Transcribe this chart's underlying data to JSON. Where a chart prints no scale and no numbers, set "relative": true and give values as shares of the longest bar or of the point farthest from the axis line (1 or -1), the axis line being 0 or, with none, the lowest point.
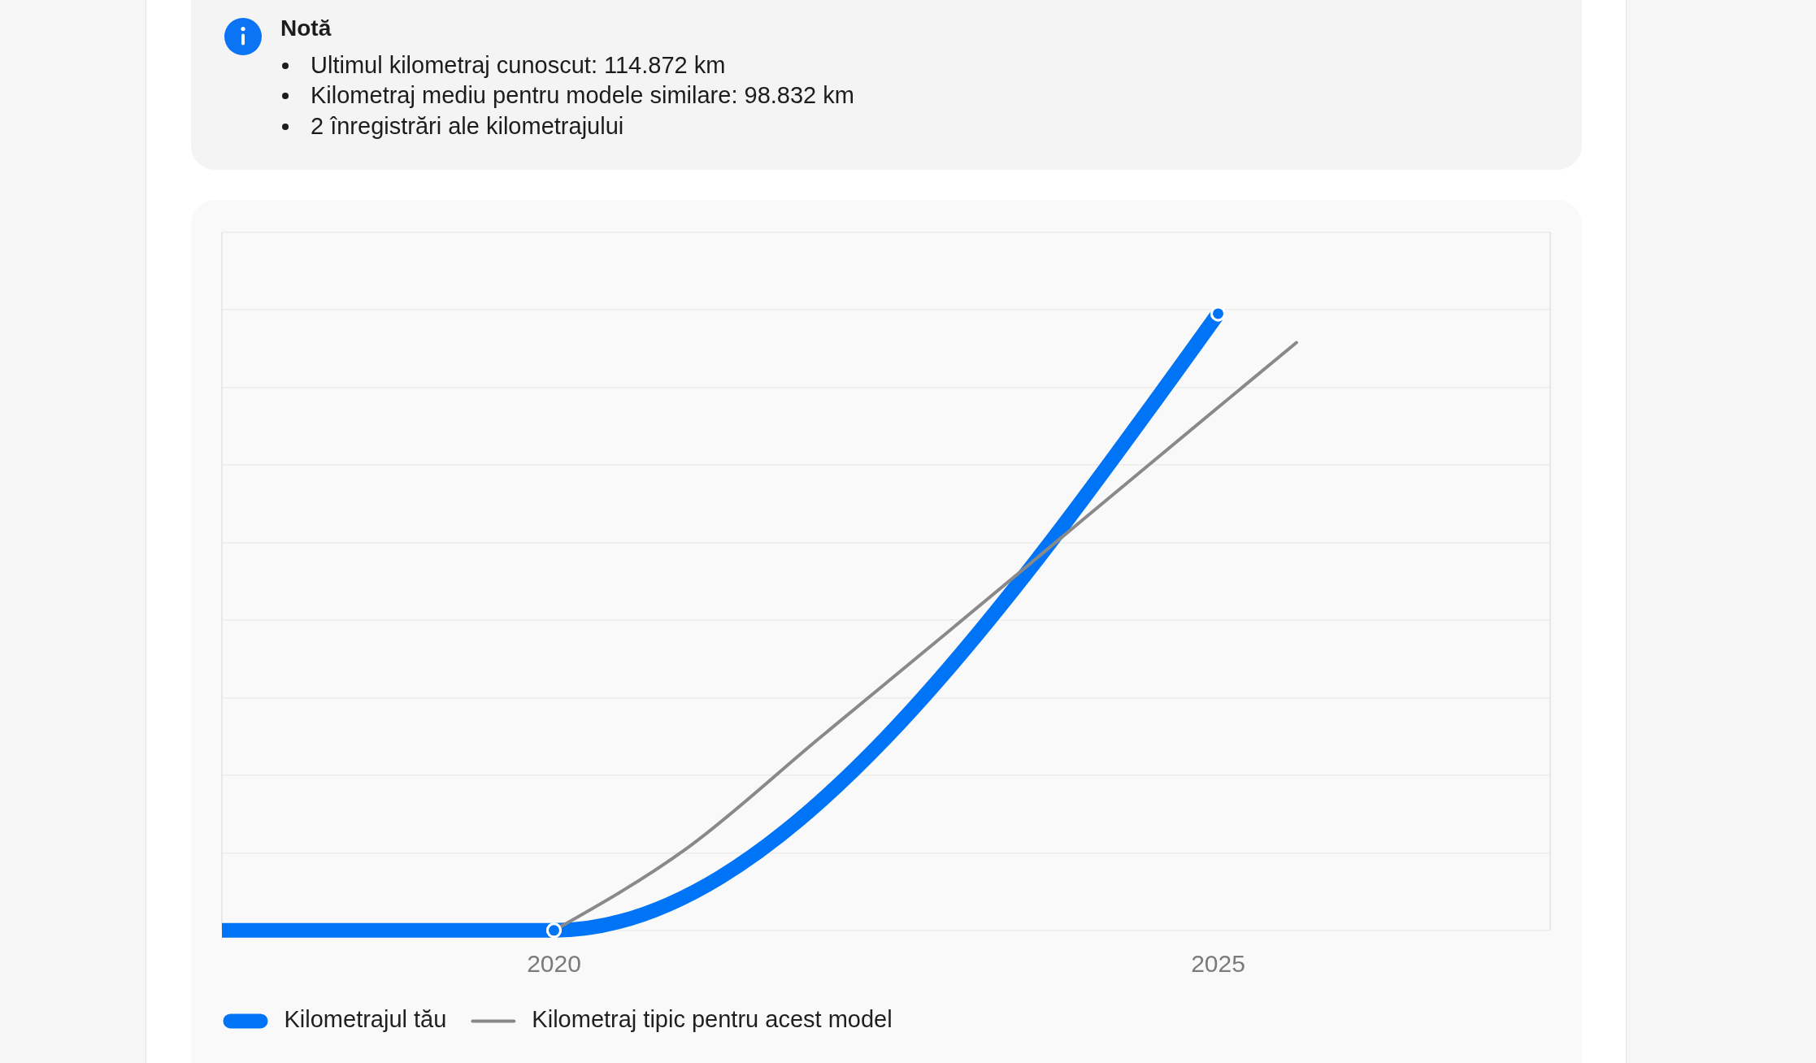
{
  "chart_data": {
    "type": "line",
    "title": "Notă",
    "annotations": [
      "Ultimul kilometraj cunoscut: 114.872 km",
      "Kilometraj mediu pentru modele similare: 98.832 km",
      "2 înregistrări ale kilometrajului"
    ],
    "relative": true,
    "xlim": [
      2017.5,
      2027.5
    ],
    "xticks": [
      2020,
      2025
    ],
    "grid": "y",
    "legend": "bottom left",
    "series": [
      {
        "name": "Kilometrajul tău",
        "color": "#0074f7",
        "x": [
          2017.5,
          2020,
          2025
        ],
        "values": [
          0,
          0,
          1
        ],
        "marker": "circle"
      },
      {
        "name": "Kilometraj tipic pentru acest model",
        "color": "#898989",
        "x": [
          2020,
          2021,
          2022,
          2023,
          2024,
          2025,
          2025.59
        ],
        "values": [
          0,
          0.133,
          0.312,
          0.49,
          0.669,
          0.848,
          0.953
        ],
        "marker": "none"
      }
    ]
  }
}
